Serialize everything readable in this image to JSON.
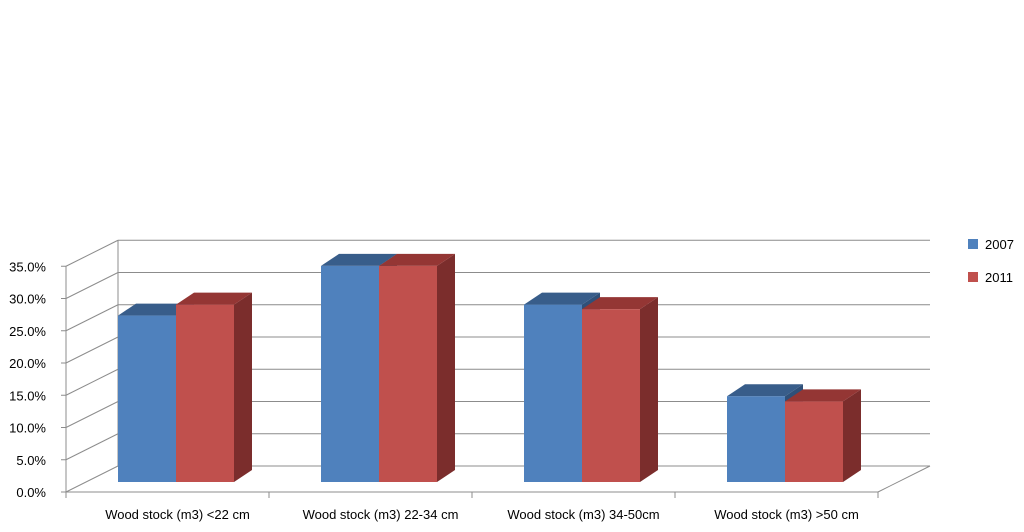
{
  "chart_data": {
    "type": "bar",
    "title": "",
    "xlabel": "",
    "ylabel": "",
    "categories": [
      "Wood stock (m3)  <22 cm",
      "Wood stock (m3)  22-34 cm",
      "Wood stock (m3)  34-50cm",
      "Wood stock (m3)  >50 cm"
    ],
    "series": [
      {
        "name": "2007",
        "values": [
          25.8,
          33.5,
          27.5,
          13.3
        ]
      },
      {
        "name": "2011",
        "values": [
          27.5,
          33.5,
          26.8,
          12.5
        ]
      }
    ],
    "ylim": [
      0,
      35
    ],
    "yticks": [
      "0.0%",
      "5.0%",
      "10.0%",
      "15.0%",
      "20.0%",
      "25.0%",
      "30.0%",
      "35.0%"
    ],
    "grid": true,
    "legend_position": "right",
    "colors": {
      "2007": "#4f81bd",
      "2011": "#c0504d"
    }
  }
}
